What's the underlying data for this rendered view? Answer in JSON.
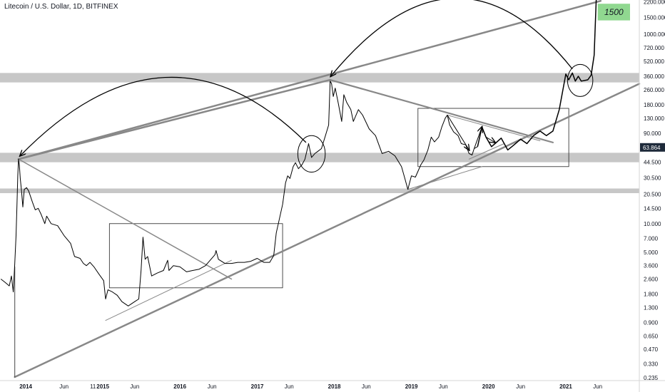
{
  "chart_data": {
    "type": "line",
    "title": "Litecoin / U.S. Dollar, 1D, BITFINEX",
    "y_scale": "log",
    "ylim": [
      0.22,
      2300
    ],
    "xlim": [
      "2013-09-01",
      "2021-12-15"
    ],
    "y_ticks": [
      0.235,
      0.33,
      0.47,
      0.65,
      0.9,
      1.3,
      1.8,
      2.6,
      3.6,
      5.0,
      7.0,
      10.0,
      14.5,
      20.5,
      30.5,
      44.5,
      63.864,
      90.0,
      130.0,
      180.0,
      260.0,
      360.0,
      520.0,
      720.0,
      1000.0,
      1500.0,
      2200.0
    ],
    "y_tick_labels": [
      "0.235",
      "0.330",
      "0.470",
      "0.650",
      "0.900",
      "1.300",
      "1.800",
      "2.600",
      "3.600",
      "5.000",
      "7.000",
      "10.000",
      "14.500",
      "20.500",
      "30.500",
      "44.500",
      "63.864",
      "90.000",
      "130.000",
      "180.000",
      "260.000",
      "360.000",
      "520.000",
      "720.000",
      "1000.000",
      "1500.000",
      "2200.000"
    ],
    "x_ticks": [
      {
        "date": "2014-01-01",
        "label": "2014",
        "major": true
      },
      {
        "date": "2014-07-01",
        "label": "Jun",
        "major": false
      },
      {
        "date": "2014-11-15",
        "label": "11",
        "major": false
      },
      {
        "date": "2015-01-01",
        "label": "2015",
        "major": true
      },
      {
        "date": "2015-06-01",
        "label": "Jun",
        "major": false
      },
      {
        "date": "2016-01-01",
        "label": "2016",
        "major": true
      },
      {
        "date": "2016-06-01",
        "label": "Jun",
        "major": false
      },
      {
        "date": "2017-01-01",
        "label": "2017",
        "major": true
      },
      {
        "date": "2017-06-01",
        "label": "Jun",
        "major": false
      },
      {
        "date": "2018-01-01",
        "label": "2018",
        "major": true
      },
      {
        "date": "2018-06-01",
        "label": "Jun",
        "major": false
      },
      {
        "date": "2019-01-01",
        "label": "2019",
        "major": true
      },
      {
        "date": "2019-06-01",
        "label": "Jun",
        "major": false
      },
      {
        "date": "2020-01-01",
        "label": "2020",
        "major": true
      },
      {
        "date": "2020-06-01",
        "label": "Jun",
        "major": false
      },
      {
        "date": "2021-01-01",
        "label": "2021",
        "major": true
      },
      {
        "date": "2021-06-01",
        "label": "Jun",
        "major": false
      }
    ],
    "current_price": {
      "value": 63.864,
      "label": "63.864",
      "color": "#1e2a3a"
    },
    "price_series": {
      "name": "LTCUSD",
      "color": "#000000",
      "points": [
        [
          "2013-09-05",
          2.6
        ],
        [
          "2013-09-25",
          2.4
        ],
        [
          "2013-10-15",
          2.2
        ],
        [
          "2013-10-25",
          2.8
        ],
        [
          "2013-11-03",
          1.9
        ],
        [
          "2013-11-10",
          3.8
        ],
        [
          "2013-11-16",
          7.5
        ],
        [
          "2013-11-20",
          15
        ],
        [
          "2013-11-24",
          32
        ],
        [
          "2013-11-28",
          48
        ],
        [
          "2013-12-02",
          41
        ],
        [
          "2013-12-06",
          30
        ],
        [
          "2013-12-12",
          22
        ],
        [
          "2013-12-18",
          15
        ],
        [
          "2013-12-25",
          23
        ],
        [
          "2014-01-05",
          24
        ],
        [
          "2014-01-15",
          22
        ],
        [
          "2014-02-01",
          17
        ],
        [
          "2014-02-15",
          14
        ],
        [
          "2014-03-01",
          14.5
        ],
        [
          "2014-03-15",
          12.5
        ],
        [
          "2014-04-01",
          10
        ],
        [
          "2014-04-10",
          12
        ],
        [
          "2014-05-01",
          10
        ],
        [
          "2014-06-01",
          9.5
        ],
        [
          "2014-07-01",
          7.5
        ],
        [
          "2014-08-01",
          6.2
        ],
        [
          "2014-08-20",
          4.5
        ],
        [
          "2014-09-15",
          4.3
        ],
        [
          "2014-10-01",
          3.8
        ],
        [
          "2014-10-15",
          3.6
        ],
        [
          "2014-11-01",
          3.9
        ],
        [
          "2014-11-20",
          3.5
        ],
        [
          "2014-12-15",
          2.9
        ],
        [
          "2015-01-05",
          2.5
        ],
        [
          "2015-01-14",
          1.6
        ],
        [
          "2015-01-25",
          2.0
        ],
        [
          "2015-02-15",
          1.9
        ],
        [
          "2015-03-10",
          1.75
        ],
        [
          "2015-04-01",
          1.5
        ],
        [
          "2015-05-01",
          1.35
        ],
        [
          "2015-06-01",
          1.5
        ],
        [
          "2015-06-20",
          1.6
        ],
        [
          "2015-07-01",
          3.2
        ],
        [
          "2015-07-10",
          7.2
        ],
        [
          "2015-07-20",
          4.2
        ],
        [
          "2015-08-01",
          4.5
        ],
        [
          "2015-08-20",
          2.8
        ],
        [
          "2015-09-15",
          3.0
        ],
        [
          "2015-10-15",
          3.2
        ],
        [
          "2015-11-04",
          4.1
        ],
        [
          "2015-11-10",
          3.2
        ],
        [
          "2015-12-01",
          3.6
        ],
        [
          "2016-01-01",
          3.5
        ],
        [
          "2016-02-01",
          3.1
        ],
        [
          "2016-03-01",
          3.2
        ],
        [
          "2016-04-01",
          3.3
        ],
        [
          "2016-05-01",
          3.6
        ],
        [
          "2016-06-15",
          4.7
        ],
        [
          "2016-06-20",
          5.2
        ],
        [
          "2016-07-01",
          4.2
        ],
        [
          "2016-08-01",
          3.8
        ],
        [
          "2016-09-01",
          3.8
        ],
        [
          "2016-10-01",
          3.9
        ],
        [
          "2016-11-01",
          3.9
        ],
        [
          "2016-12-01",
          4.0
        ],
        [
          "2017-01-01",
          4.3
        ],
        [
          "2017-02-01",
          3.9
        ],
        [
          "2017-03-01",
          3.9
        ],
        [
          "2017-03-20",
          4.6
        ],
        [
          "2017-04-01",
          8
        ],
        [
          "2017-04-15",
          11
        ],
        [
          "2017-05-01",
          16
        ],
        [
          "2017-05-15",
          27
        ],
        [
          "2017-05-25",
          32
        ],
        [
          "2017-06-05",
          30
        ],
        [
          "2017-06-20",
          40
        ],
        [
          "2017-07-01",
          44
        ],
        [
          "2017-07-15",
          38
        ],
        [
          "2017-08-01",
          42
        ],
        [
          "2017-08-15",
          48
        ],
        [
          "2017-09-01",
          70
        ],
        [
          "2017-09-15",
          50
        ],
        [
          "2017-10-01",
          55
        ],
        [
          "2017-10-15",
          58
        ],
        [
          "2017-11-01",
          62
        ],
        [
          "2017-11-20",
          85
        ],
        [
          "2017-12-05",
          110
        ],
        [
          "2017-12-12",
          320
        ],
        [
          "2017-12-19",
          300
        ],
        [
          "2017-12-27",
          220
        ],
        [
          "2018-01-05",
          270
        ],
        [
          "2018-01-20",
          185
        ],
        [
          "2018-02-05",
          120
        ],
        [
          "2018-02-15",
          230
        ],
        [
          "2018-03-01",
          190
        ],
        [
          "2018-03-20",
          160
        ],
        [
          "2018-04-01",
          120
        ],
        [
          "2018-04-25",
          160
        ],
        [
          "2018-05-15",
          140
        ],
        [
          "2018-06-15",
          100
        ],
        [
          "2018-07-15",
          85
        ],
        [
          "2018-08-15",
          55
        ],
        [
          "2018-09-15",
          58
        ],
        [
          "2018-10-15",
          52
        ],
        [
          "2018-11-15",
          40
        ],
        [
          "2018-12-01",
          30
        ],
        [
          "2018-12-15",
          23
        ],
        [
          "2019-01-01",
          32
        ],
        [
          "2019-01-20",
          31
        ],
        [
          "2019-02-15",
          42
        ],
        [
          "2019-03-01",
          47
        ],
        [
          "2019-03-20",
          60
        ],
        [
          "2019-04-05",
          82
        ],
        [
          "2019-04-20",
          73
        ],
        [
          "2019-05-10",
          82
        ],
        [
          "2019-05-25",
          105
        ],
        [
          "2019-06-10",
          130
        ],
        [
          "2019-06-20",
          140
        ],
        [
          "2019-07-01",
          110
        ],
        [
          "2019-07-20",
          93
        ],
        [
          "2019-08-10",
          85
        ],
        [
          "2019-08-25",
          70
        ],
        [
          "2019-09-15",
          68
        ],
        [
          "2019-10-01",
          55
        ],
        [
          "2019-10-15",
          53
        ],
        [
          "2019-10-25",
          62
        ],
        [
          "2019-11-10",
          65
        ]
      ]
    },
    "projection_path": {
      "name": "projected path",
      "color": "#000000",
      "points": [
        [
          "2019-11-10",
          65
        ],
        [
          "2019-12-01",
          105
        ],
        [
          "2019-12-20",
          82
        ],
        [
          "2020-01-15",
          65
        ],
        [
          "2020-02-01",
          70
        ],
        [
          "2020-03-01",
          80
        ],
        [
          "2020-04-01",
          60
        ],
        [
          "2020-05-01",
          68
        ],
        [
          "2020-06-01",
          78
        ],
        [
          "2020-07-01",
          70
        ],
        [
          "2020-08-01",
          85
        ],
        [
          "2020-09-01",
          95
        ],
        [
          "2020-10-01",
          85
        ],
        [
          "2020-11-01",
          95
        ],
        [
          "2020-12-01",
          160
        ],
        [
          "2021-01-01",
          380
        ],
        [
          "2021-01-15",
          330
        ],
        [
          "2021-02-01",
          390
        ],
        [
          "2021-02-15",
          320
        ],
        [
          "2021-03-01",
          360
        ],
        [
          "2021-03-15",
          320
        ],
        [
          "2021-04-15",
          330
        ],
        [
          "2021-05-01",
          370
        ],
        [
          "2021-05-15",
          600
        ],
        [
          "2021-05-25",
          2300
        ]
      ]
    },
    "horizontal_zones": [
      {
        "name": "support-zone-high",
        "low": 310,
        "high": 390
      },
      {
        "name": "support-zone-mid",
        "low": 44.5,
        "high": 56
      },
      {
        "name": "support-zone-low",
        "low": 21,
        "high": 23.5
      }
    ],
    "trendlines": [
      {
        "name": "upper-channel-line",
        "from": [
          "2013-11-28",
          48
        ],
        "to": [
          "2021-06-15",
          2250
        ]
      },
      {
        "name": "lower-channel-line",
        "from": [
          "2013-11-10",
          0.24
        ],
        "to": [
          "2021-12-15",
          300
        ]
      },
      {
        "name": "top-to-top-line",
        "from": [
          "2013-11-28",
          48
        ],
        "to": [
          "2017-12-12",
          330
        ]
      },
      {
        "name": "descending-line-2014",
        "from": [
          "2013-11-28",
          48
        ],
        "to": [
          "2016-09-01",
          2.6
        ]
      },
      {
        "name": "descending-line-2018",
        "from": [
          "2017-12-12",
          330
        ],
        "to": [
          "2020-11-01",
          72
        ]
      },
      {
        "name": "descending-line-2019",
        "from": [
          "2019-06-20",
          140
        ],
        "to": [
          "2020-09-01",
          75
        ]
      },
      {
        "name": "rising-support-2015",
        "from": [
          "2015-01-14",
          0.95
        ],
        "to": [
          "2016-09-01",
          4.1
        ]
      },
      {
        "name": "rising-support-2019",
        "from": [
          "2018-12-15",
          23
        ],
        "to": [
          "2019-12-01",
          40
        ]
      },
      {
        "name": "mini-rising-2019",
        "from": [
          "2019-10-01",
          48
        ],
        "to": [
          "2020-03-15",
          70
        ]
      },
      {
        "name": "first-candle-wick",
        "from": [
          "2013-11-10",
          0.24
        ],
        "to": [
          "2013-11-10",
          3.5
        ]
      }
    ],
    "boxes": [
      {
        "name": "consolidation-box-2015",
        "x0": "2015-02-01",
        "x1": "2017-05-01",
        "y0": 2.1,
        "y1": 10.0
      },
      {
        "name": "consolidation-box-2019",
        "x0": "2019-02-01",
        "x1": "2021-01-15",
        "y0": 40,
        "y1": 165
      }
    ],
    "ellipses": [
      {
        "name": "ellipse-2017",
        "cx": "2017-09-15",
        "cy": 50,
        "rx_days": 65,
        "ry_low": 35,
        "ry_high": 85
      },
      {
        "name": "ellipse-2021",
        "cx": "2021-03-10",
        "cy": 330,
        "rx_days": 60,
        "ry_low": 220,
        "ry_high": 480
      }
    ],
    "arcs": [
      {
        "name": "arc-2014-to-2017",
        "from": [
          "2017-08-20",
          72
        ],
        "to": [
          "2013-12-05",
          52
        ],
        "peak": [
          "2015-11-01",
          350
        ]
      },
      {
        "name": "arc-2018-to-2021",
        "from": [
          "2021-02-01",
          430
        ],
        "to": [
          "2017-12-15",
          360
        ],
        "peak": [
          "2019-08-01",
          2400
        ]
      }
    ],
    "annotations": [
      {
        "name": "target-label",
        "text": "1500",
        "x0": "2021-06-01",
        "x1": "2021-11-01",
        "y0": 1400,
        "y1": 2100,
        "color": "#90d890"
      }
    ]
  }
}
